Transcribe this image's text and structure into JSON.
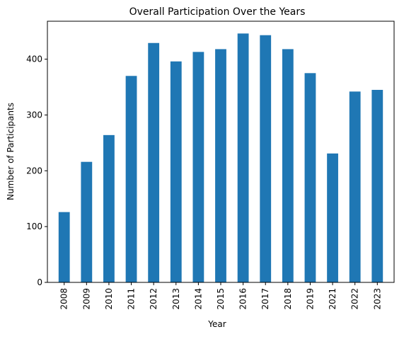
{
  "chart_data": {
    "type": "bar",
    "title": "Overall Participation Over the Years",
    "xlabel": "Year",
    "ylabel": "Number of Participants",
    "categories": [
      "2008",
      "2009",
      "2010",
      "2011",
      "2012",
      "2013",
      "2014",
      "2015",
      "2016",
      "2017",
      "2018",
      "2019",
      "2021",
      "2022",
      "2023"
    ],
    "values": [
      126,
      216,
      264,
      370,
      429,
      396,
      413,
      418,
      446,
      443,
      418,
      375,
      231,
      342,
      345
    ],
    "ylim": [
      0,
      468
    ],
    "yticks": [
      0,
      100,
      200,
      300,
      400
    ],
    "grid": false,
    "legend": "none",
    "bar_color": "#1f77b4"
  }
}
